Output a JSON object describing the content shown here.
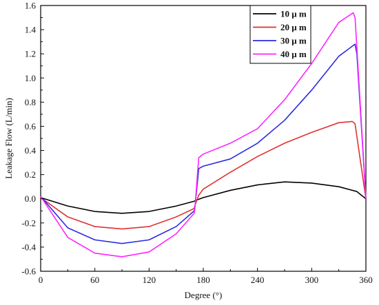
{
  "chart_data": {
    "type": "line",
    "title": "",
    "xlabel": "Degree (°)",
    "ylabel": "Leakage Flow (L/min)",
    "xlim": [
      0,
      360
    ],
    "ylim": [
      -0.6,
      1.6
    ],
    "xticks": [
      0,
      60,
      120,
      180,
      240,
      300,
      360
    ],
    "yticks": [
      -0.6,
      -0.4,
      -0.2,
      0.0,
      0.2,
      0.4,
      0.6,
      0.8,
      1.0,
      1.2,
      1.4,
      1.6
    ],
    "ytick_labels": [
      "-0.6",
      "-0.4",
      "-0.2",
      "0.0",
      "0.2",
      "0.4",
      "0.6",
      "0.8",
      "1.0",
      "1.2",
      "1.4",
      "1.6"
    ],
    "grid": false,
    "legend_position": "top-right",
    "series": [
      {
        "name": "10 μ m",
        "color": "#000000",
        "x": [
          0,
          30,
          60,
          90,
          120,
          150,
          170,
          171,
          180,
          210,
          240,
          270,
          300,
          330,
          350,
          360
        ],
        "y": [
          0.01,
          -0.06,
          -0.105,
          -0.12,
          -0.105,
          -0.06,
          -0.02,
          -0.015,
          0.01,
          0.07,
          0.115,
          0.14,
          0.13,
          0.1,
          0.06,
          0.0
        ]
      },
      {
        "name": "20 μ m",
        "color": "#e0302f",
        "x": [
          0,
          30,
          60,
          90,
          120,
          150,
          170,
          171,
          175,
          180,
          210,
          240,
          270,
          300,
          330,
          345,
          348,
          360
        ],
        "y": [
          0.01,
          -0.15,
          -0.23,
          -0.25,
          -0.23,
          -0.15,
          -0.08,
          -0.05,
          0.03,
          0.08,
          0.22,
          0.35,
          0.46,
          0.55,
          0.63,
          0.64,
          0.62,
          0.0
        ]
      },
      {
        "name": "30 μ m",
        "color": "#2a2ae0",
        "x": [
          0,
          30,
          60,
          90,
          120,
          150,
          170,
          171,
          173,
          175,
          180,
          210,
          240,
          270,
          300,
          330,
          348,
          350,
          360
        ],
        "y": [
          0.02,
          -0.24,
          -0.34,
          -0.37,
          -0.34,
          -0.23,
          -0.1,
          -0.05,
          0.1,
          0.25,
          0.27,
          0.33,
          0.46,
          0.65,
          0.9,
          1.18,
          1.28,
          1.2,
          0.0
        ]
      },
      {
        "name": "40 μ m",
        "color": "#ff22ff",
        "x": [
          0,
          30,
          60,
          90,
          120,
          150,
          170,
          171,
          173,
          175,
          180,
          210,
          240,
          270,
          300,
          330,
          346,
          348,
          360
        ],
        "y": [
          0.02,
          -0.32,
          -0.45,
          -0.48,
          -0.44,
          -0.29,
          -0.12,
          -0.06,
          0.15,
          0.34,
          0.37,
          0.46,
          0.58,
          0.82,
          1.12,
          1.46,
          1.54,
          1.5,
          0.0
        ]
      }
    ]
  }
}
